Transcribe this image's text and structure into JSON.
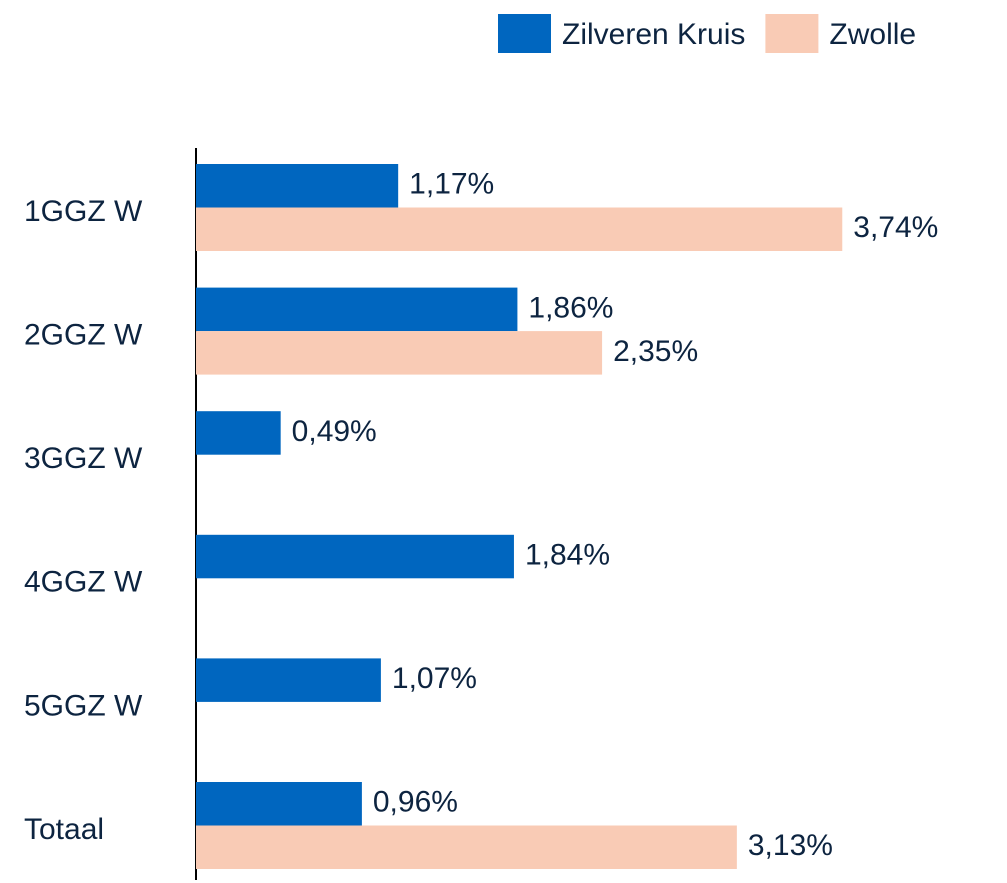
{
  "chart_data": {
    "type": "bar",
    "categories": [
      "1GGZ W",
      "2GGZ W",
      "3GGZ W",
      "4GGZ W",
      "5GGZ W",
      "Totaal"
    ],
    "series": [
      {
        "name": "Zilveren Kruis",
        "color": "#0066bf",
        "values": [
          1.17,
          1.86,
          0.49,
          1.84,
          1.07,
          0.96
        ],
        "value_labels": [
          "1,17%",
          "1,86%",
          "0,49%",
          "1,84%",
          "1,07%",
          "0,96%"
        ]
      },
      {
        "name": "Zwolle",
        "color": "#f9cbb5",
        "values": [
          3.74,
          2.35,
          null,
          null,
          null,
          3.13
        ],
        "value_labels": [
          "3,74%",
          "2,35%",
          null,
          null,
          null,
          "3,13%"
        ]
      }
    ],
    "legend": "top-right"
  }
}
